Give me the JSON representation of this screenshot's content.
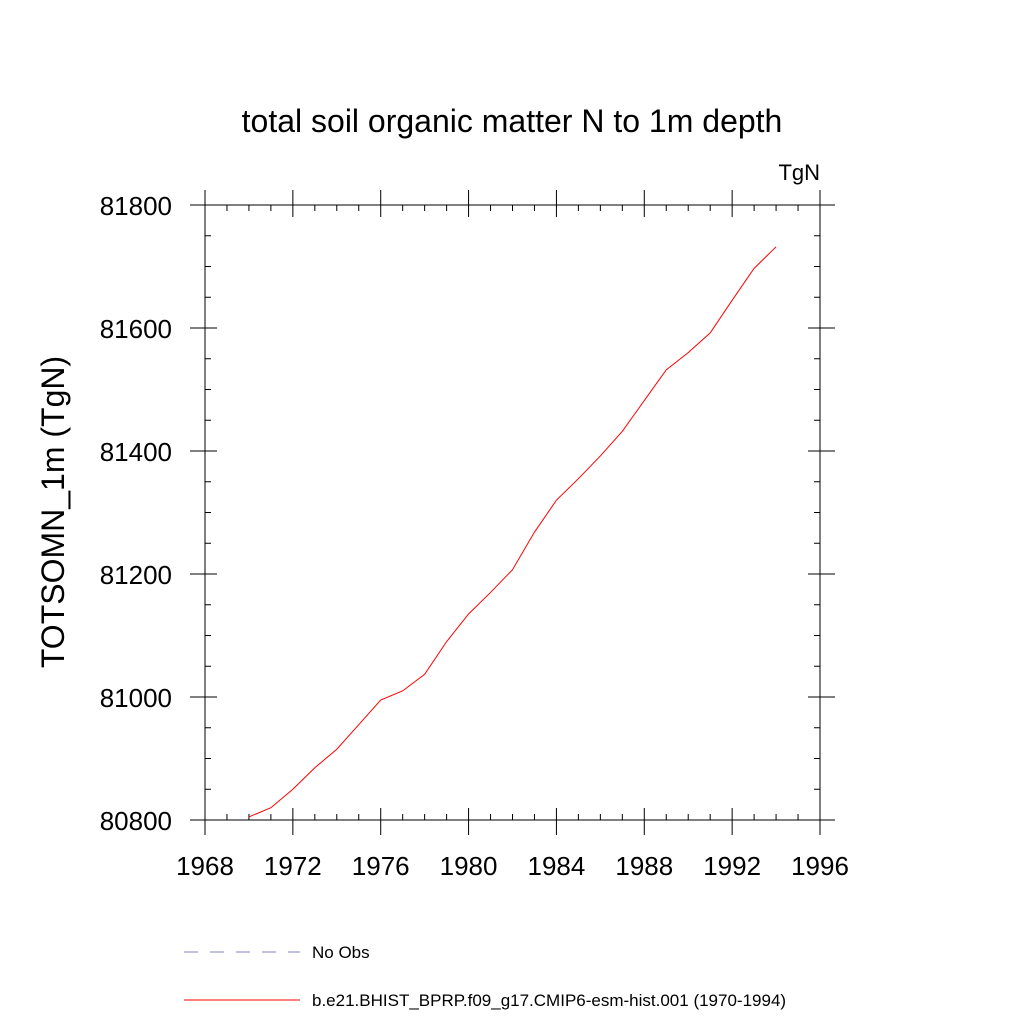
{
  "chart_data": {
    "type": "line",
    "title": "total soil organic matter N to 1m depth",
    "units_label": "TgN",
    "ylabel": "TOTSOMN_1m  (TgN)",
    "xlabel": "",
    "xlim": [
      1968,
      1996
    ],
    "ylim": [
      80800,
      81800
    ],
    "x_ticks": [
      1968,
      1972,
      1976,
      1980,
      1984,
      1988,
      1992,
      1996
    ],
    "y_ticks": [
      80800,
      81000,
      81200,
      81400,
      81600,
      81800
    ],
    "x_minor_step": 1,
    "y_minor_step": 50,
    "grid": false,
    "legend_placement": "bottom",
    "series": [
      {
        "name": "No Obs",
        "color": "#8080c0",
        "dash": "dashed",
        "x": [],
        "values": []
      },
      {
        "name": "b.e21.BHIST_BPRP.f09_g17.CMIP6-esm-hist.001 (1970-1994)",
        "color": "#ff0000",
        "dash": "solid",
        "x": [
          1970,
          1971,
          1972,
          1973,
          1974,
          1975,
          1976,
          1977,
          1978,
          1979,
          1980,
          1981,
          1982,
          1983,
          1984,
          1985,
          1986,
          1987,
          1988,
          1989,
          1990,
          1991,
          1992,
          1993,
          1994
        ],
        "values": [
          80805,
          80820,
          80850,
          80885,
          80915,
          80955,
          80995,
          81010,
          81037,
          81090,
          81135,
          81170,
          81207,
          81268,
          81320,
          81355,
          81392,
          81432,
          81482,
          81532,
          81560,
          81592,
          81645,
          81697,
          81732
        ]
      }
    ]
  }
}
